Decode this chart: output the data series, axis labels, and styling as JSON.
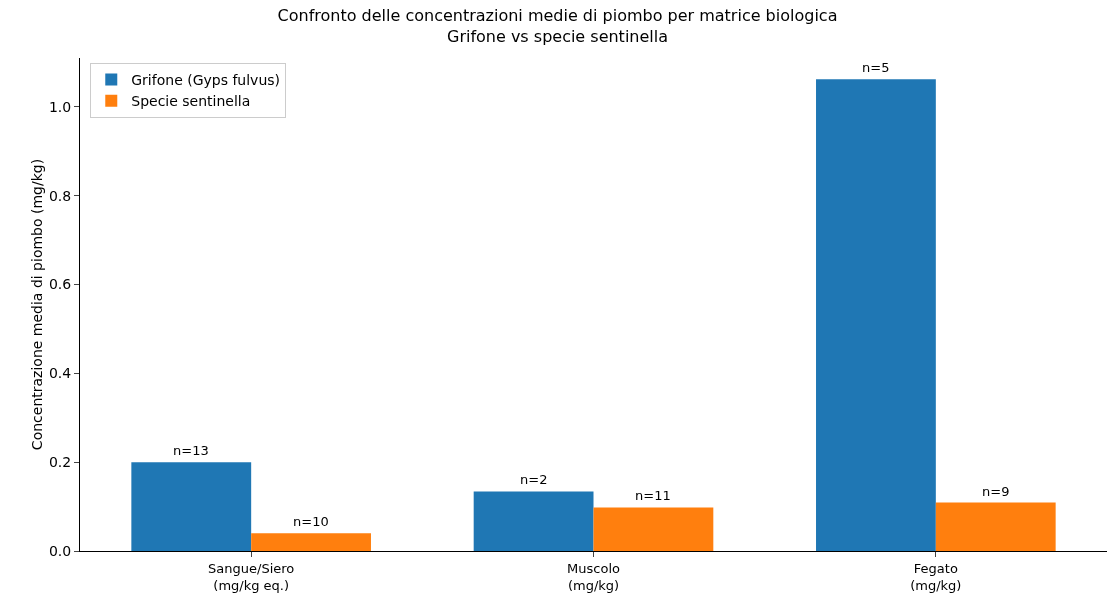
{
  "chart_data": {
    "type": "bar",
    "title": "Confronto delle concentrazioni medie di piombo per matrice biologica\nGrifone vs specie sentinella",
    "ylabel": "Concentrazione media di piombo (mg/kg)",
    "categories": [
      "Sangue/Siero\n(mg/kg eq.)",
      "Muscolo\n(mg/kg)",
      "Fegato\n(mg/kg)"
    ],
    "series": [
      {
        "name": "Grifone (Gyps fulvus)",
        "color": "#1f77b4",
        "values": [
          0.2,
          0.134,
          1.062
        ]
      },
      {
        "name": "Specie sentinella",
        "color": "#ff7f0e",
        "values": [
          0.04,
          0.098,
          0.109
        ]
      }
    ],
    "annotations": [
      "n=13",
      "n=10",
      "n=2",
      "n=11",
      "n=5",
      "n=9"
    ],
    "ylim": [
      0,
      1.11
    ],
    "yticks": [
      {
        "value": 0,
        "label": "0.0"
      },
      {
        "value": 0.2,
        "label": "0.2"
      },
      {
        "value": 0.4,
        "label": "0.4"
      },
      {
        "value": 0.6,
        "label": "0.6"
      },
      {
        "value": 0.8,
        "label": "0.8"
      },
      {
        "value": 1.0,
        "label": "1.0"
      }
    ],
    "legend": "top left",
    "grid": false
  }
}
